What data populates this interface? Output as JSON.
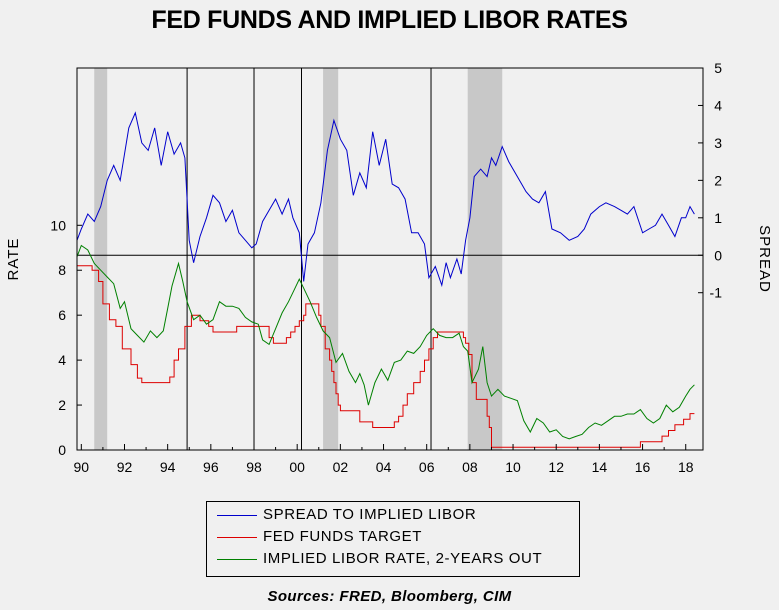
{
  "chart_data": {
    "type": "line",
    "title": "FED FUNDS AND IMPLIED LIBOR RATES",
    "source": "Sources:  FRED, Bloomberg, CIM",
    "left_axis": {
      "label": "RATE",
      "ticks": [
        0,
        2,
        4,
        6,
        8,
        10
      ],
      "range": [
        0,
        17
      ]
    },
    "right_axis": {
      "label": "SPREAD",
      "ticks": [
        -1,
        0,
        1,
        2,
        3,
        4,
        5
      ],
      "range": [
        -5.2,
        5
      ]
    },
    "x_axis": {
      "ticks": [
        "90",
        "92",
        "94",
        "96",
        "98",
        "00",
        "02",
        "04",
        "06",
        "08",
        "10",
        "12",
        "14",
        "16",
        "18"
      ],
      "range": [
        1989.8,
        2018.8
      ]
    },
    "recessions": [
      [
        1990.6,
        1991.2
      ],
      [
        2001.2,
        2001.9
      ],
      [
        2007.9,
        2009.5
      ]
    ],
    "vertical_lines": [
      1994.9,
      1998.0,
      2000.2,
      2006.2
    ],
    "colors": {
      "spread": "#0000cc",
      "fedfunds": "#dd0000",
      "libor": "#008000",
      "recession": "#c8c8c8"
    },
    "series": [
      {
        "name": "SPREAD TO IMPLIED LIBOR",
        "axis": "right",
        "points": [
          [
            1989.8,
            0.4
          ],
          [
            1990.0,
            0.7
          ],
          [
            1990.3,
            1.1
          ],
          [
            1990.6,
            0.9
          ],
          [
            1990.9,
            1.3
          ],
          [
            1991.2,
            2.0
          ],
          [
            1991.5,
            2.4
          ],
          [
            1991.8,
            2.0
          ],
          [
            1992.0,
            2.7
          ],
          [
            1992.2,
            3.4
          ],
          [
            1992.5,
            3.8
          ],
          [
            1992.8,
            3.0
          ],
          [
            1993.1,
            2.8
          ],
          [
            1993.4,
            3.4
          ],
          [
            1993.7,
            2.4
          ],
          [
            1994.0,
            3.3
          ],
          [
            1994.3,
            2.7
          ],
          [
            1994.6,
            3.0
          ],
          [
            1994.8,
            2.6
          ],
          [
            1995.0,
            0.4
          ],
          [
            1995.2,
            -0.2
          ],
          [
            1995.5,
            0.5
          ],
          [
            1995.8,
            1.0
          ],
          [
            1996.1,
            1.6
          ],
          [
            1996.4,
            1.4
          ],
          [
            1996.7,
            0.9
          ],
          [
            1997.0,
            1.2
          ],
          [
            1997.3,
            0.6
          ],
          [
            1997.6,
            0.4
          ],
          [
            1997.9,
            0.2
          ],
          [
            1998.1,
            0.3
          ],
          [
            1998.4,
            0.9
          ],
          [
            1998.7,
            1.2
          ],
          [
            1999.0,
            1.5
          ],
          [
            1999.3,
            1.1
          ],
          [
            1999.6,
            1.5
          ],
          [
            1999.8,
            1.0
          ],
          [
            2000.1,
            0.6
          ],
          [
            2000.3,
            -0.7
          ],
          [
            2000.5,
            0.3
          ],
          [
            2000.8,
            0.6
          ],
          [
            2001.1,
            1.4
          ],
          [
            2001.4,
            2.8
          ],
          [
            2001.7,
            3.6
          ],
          [
            2002.0,
            3.1
          ],
          [
            2002.3,
            2.8
          ],
          [
            2002.6,
            1.6
          ],
          [
            2002.9,
            2.2
          ],
          [
            2003.2,
            1.8
          ],
          [
            2003.5,
            3.3
          ],
          [
            2003.8,
            2.4
          ],
          [
            2004.1,
            3.1
          ],
          [
            2004.4,
            1.9
          ],
          [
            2004.7,
            1.8
          ],
          [
            2005.0,
            1.5
          ],
          [
            2005.3,
            0.6
          ],
          [
            2005.6,
            0.6
          ],
          [
            2005.9,
            0.3
          ],
          [
            2006.1,
            -0.6
          ],
          [
            2006.4,
            -0.3
          ],
          [
            2006.7,
            -0.8
          ],
          [
            2006.9,
            -0.2
          ],
          [
            2007.1,
            -0.6
          ],
          [
            2007.4,
            -0.1
          ],
          [
            2007.6,
            -0.5
          ],
          [
            2007.8,
            0.4
          ],
          [
            2008.0,
            1.0
          ],
          [
            2008.2,
            2.1
          ],
          [
            2008.5,
            2.3
          ],
          [
            2008.8,
            2.1
          ],
          [
            2009.0,
            2.6
          ],
          [
            2009.2,
            2.4
          ],
          [
            2009.5,
            2.9
          ],
          [
            2009.8,
            2.5
          ],
          [
            2010.1,
            2.2
          ],
          [
            2010.4,
            1.9
          ],
          [
            2010.6,
            1.7
          ],
          [
            2010.9,
            1.5
          ],
          [
            2011.2,
            1.4
          ],
          [
            2011.5,
            1.7
          ],
          [
            2011.8,
            0.7
          ],
          [
            2012.2,
            0.6
          ],
          [
            2012.6,
            0.4
          ],
          [
            2013.0,
            0.5
          ],
          [
            2013.3,
            0.7
          ],
          [
            2013.6,
            1.1
          ],
          [
            2014.0,
            1.3
          ],
          [
            2014.3,
            1.4
          ],
          [
            2014.7,
            1.3
          ],
          [
            2015.0,
            1.2
          ],
          [
            2015.3,
            1.1
          ],
          [
            2015.6,
            1.3
          ],
          [
            2016.0,
            0.6
          ],
          [
            2016.3,
            0.7
          ],
          [
            2016.6,
            0.8
          ],
          [
            2016.9,
            1.1
          ],
          [
            2017.2,
            0.8
          ],
          [
            2017.5,
            0.5
          ],
          [
            2017.8,
            1.0
          ],
          [
            2018.0,
            1.0
          ],
          [
            2018.2,
            1.3
          ],
          [
            2018.4,
            1.1
          ]
        ]
      },
      {
        "name": "FED FUNDS TARGET",
        "axis": "left",
        "step": true,
        "points": [
          [
            1989.8,
            8.2
          ],
          [
            1990.5,
            8.0
          ],
          [
            1990.8,
            7.5
          ],
          [
            1991.0,
            6.5
          ],
          [
            1991.3,
            5.8
          ],
          [
            1991.6,
            5.5
          ],
          [
            1991.9,
            4.5
          ],
          [
            1992.3,
            3.8
          ],
          [
            1992.6,
            3.2
          ],
          [
            1992.8,
            3.0
          ],
          [
            1994.1,
            3.25
          ],
          [
            1994.3,
            4.0
          ],
          [
            1994.5,
            4.5
          ],
          [
            1994.8,
            5.5
          ],
          [
            1995.1,
            6.0
          ],
          [
            1995.5,
            5.75
          ],
          [
            1995.9,
            5.5
          ],
          [
            1996.1,
            5.25
          ],
          [
            1997.2,
            5.5
          ],
          [
            1998.7,
            5.0
          ],
          [
            1998.9,
            4.75
          ],
          [
            1999.5,
            5.0
          ],
          [
            1999.7,
            5.25
          ],
          [
            1999.9,
            5.5
          ],
          [
            2000.1,
            5.75
          ],
          [
            2000.3,
            6.0
          ],
          [
            2000.4,
            6.5
          ],
          [
            2001.0,
            6.0
          ],
          [
            2001.1,
            5.5
          ],
          [
            2001.3,
            4.5
          ],
          [
            2001.5,
            4.0
          ],
          [
            2001.6,
            3.5
          ],
          [
            2001.7,
            3.0
          ],
          [
            2001.8,
            2.5
          ],
          [
            2001.9,
            2.0
          ],
          [
            2002.0,
            1.75
          ],
          [
            2002.9,
            1.25
          ],
          [
            2003.5,
            1.0
          ],
          [
            2004.5,
            1.25
          ],
          [
            2004.7,
            1.5
          ],
          [
            2004.9,
            2.0
          ],
          [
            2005.1,
            2.5
          ],
          [
            2005.4,
            3.0
          ],
          [
            2005.7,
            3.5
          ],
          [
            2005.9,
            4.0
          ],
          [
            2006.1,
            4.5
          ],
          [
            2006.3,
            5.0
          ],
          [
            2006.5,
            5.25
          ],
          [
            2007.7,
            5.0
          ],
          [
            2007.8,
            4.75
          ],
          [
            2007.95,
            4.25
          ],
          [
            2008.1,
            3.0
          ],
          [
            2008.3,
            2.25
          ],
          [
            2008.8,
            1.5
          ],
          [
            2008.9,
            1.0
          ],
          [
            2009.0,
            0.12
          ],
          [
            2015.9,
            0.37
          ],
          [
            2016.9,
            0.62
          ],
          [
            2017.2,
            0.87
          ],
          [
            2017.5,
            1.12
          ],
          [
            2017.9,
            1.37
          ],
          [
            2018.2,
            1.62
          ],
          [
            2018.4,
            1.62
          ]
        ]
      },
      {
        "name": "IMPLIED LIBOR RATE, 2-YEARS OUT",
        "axis": "left",
        "points": [
          [
            1989.8,
            8.6
          ],
          [
            1990.0,
            9.1
          ],
          [
            1990.3,
            8.9
          ],
          [
            1990.6,
            8.3
          ],
          [
            1990.9,
            8.0
          ],
          [
            1991.2,
            7.7
          ],
          [
            1991.5,
            7.4
          ],
          [
            1991.8,
            6.3
          ],
          [
            1992.0,
            6.6
          ],
          [
            1992.3,
            5.4
          ],
          [
            1992.6,
            5.1
          ],
          [
            1992.9,
            4.8
          ],
          [
            1993.2,
            5.3
          ],
          [
            1993.5,
            5.0
          ],
          [
            1993.8,
            5.3
          ],
          [
            1994.0,
            6.3
          ],
          [
            1994.2,
            7.3
          ],
          [
            1994.5,
            8.3
          ],
          [
            1994.7,
            7.5
          ],
          [
            1994.9,
            6.6
          ],
          [
            1995.2,
            5.8
          ],
          [
            1995.5,
            6.0
          ],
          [
            1995.8,
            5.6
          ],
          [
            1996.1,
            5.8
          ],
          [
            1996.4,
            6.6
          ],
          [
            1996.7,
            6.4
          ],
          [
            1997.0,
            6.4
          ],
          [
            1997.3,
            6.3
          ],
          [
            1997.6,
            5.9
          ],
          [
            1997.9,
            5.7
          ],
          [
            1998.2,
            5.6
          ],
          [
            1998.4,
            4.9
          ],
          [
            1998.7,
            4.7
          ],
          [
            1999.0,
            5.4
          ],
          [
            1999.3,
            6.1
          ],
          [
            1999.6,
            6.6
          ],
          [
            1999.9,
            7.2
          ],
          [
            2000.1,
            7.6
          ],
          [
            2000.3,
            7.2
          ],
          [
            2000.6,
            6.6
          ],
          [
            2000.9,
            5.9
          ],
          [
            2001.2,
            5.3
          ],
          [
            2001.5,
            5.0
          ],
          [
            2001.8,
            3.9
          ],
          [
            2002.1,
            4.3
          ],
          [
            2002.4,
            3.5
          ],
          [
            2002.7,
            3.0
          ],
          [
            2002.9,
            3.4
          ],
          [
            2003.1,
            2.9
          ],
          [
            2003.3,
            2.0
          ],
          [
            2003.6,
            3.0
          ],
          [
            2003.9,
            3.6
          ],
          [
            2004.2,
            3.1
          ],
          [
            2004.5,
            3.9
          ],
          [
            2004.8,
            4.0
          ],
          [
            2005.1,
            4.4
          ],
          [
            2005.4,
            4.3
          ],
          [
            2005.7,
            4.6
          ],
          [
            2006.0,
            5.1
          ],
          [
            2006.3,
            5.4
          ],
          [
            2006.6,
            5.1
          ],
          [
            2006.9,
            5.0
          ],
          [
            2007.2,
            5.0
          ],
          [
            2007.5,
            5.2
          ],
          [
            2007.7,
            4.6
          ],
          [
            2007.9,
            4.4
          ],
          [
            2008.1,
            3.0
          ],
          [
            2008.4,
            3.6
          ],
          [
            2008.6,
            4.6
          ],
          [
            2008.8,
            3.0
          ],
          [
            2009.0,
            2.4
          ],
          [
            2009.3,
            2.7
          ],
          [
            2009.6,
            2.4
          ],
          [
            2009.9,
            2.3
          ],
          [
            2010.2,
            2.2
          ],
          [
            2010.5,
            1.3
          ],
          [
            2010.8,
            0.8
          ],
          [
            2011.1,
            1.4
          ],
          [
            2011.4,
            1.2
          ],
          [
            2011.7,
            0.8
          ],
          [
            2012.0,
            0.9
          ],
          [
            2012.3,
            0.6
          ],
          [
            2012.6,
            0.5
          ],
          [
            2012.9,
            0.6
          ],
          [
            2013.2,
            0.7
          ],
          [
            2013.5,
            1.0
          ],
          [
            2013.8,
            1.2
          ],
          [
            2014.1,
            1.1
          ],
          [
            2014.4,
            1.3
          ],
          [
            2014.7,
            1.5
          ],
          [
            2015.0,
            1.5
          ],
          [
            2015.3,
            1.6
          ],
          [
            2015.6,
            1.6
          ],
          [
            2015.9,
            1.8
          ],
          [
            2016.2,
            1.4
          ],
          [
            2016.5,
            1.2
          ],
          [
            2016.8,
            1.4
          ],
          [
            2017.1,
            2.0
          ],
          [
            2017.4,
            1.7
          ],
          [
            2017.7,
            1.9
          ],
          [
            2018.0,
            2.4
          ],
          [
            2018.2,
            2.7
          ],
          [
            2018.4,
            2.9
          ]
        ]
      }
    ]
  },
  "legend": {
    "items": [
      {
        "label": "SPREAD TO IMPLIED LIBOR",
        "color": "#0000cc"
      },
      {
        "label": "FED FUNDS TARGET",
        "color": "#dd0000"
      },
      {
        "label": "IMPLIED LIBOR RATE, 2-YEARS OUT",
        "color": "#008000"
      }
    ]
  }
}
